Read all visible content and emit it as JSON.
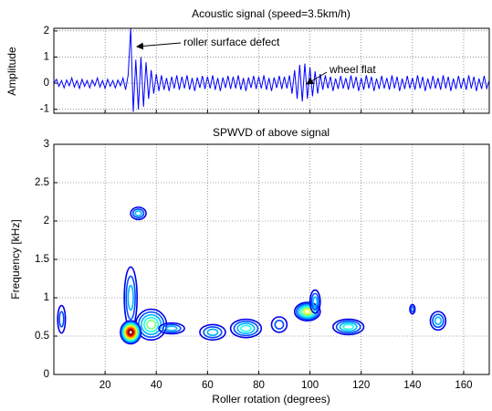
{
  "chart_data": [
    {
      "type": "line",
      "title": "Acoustic signal (speed=3.5km/h)",
      "y_label": "Amplitude",
      "xlim": [
        0,
        170
      ],
      "ylim": [
        -1.15,
        2.1
      ],
      "xticks": [
        20,
        40,
        60,
        80,
        100,
        120,
        140,
        160
      ],
      "yticks": [
        -1,
        0,
        1,
        2
      ],
      "grid": true,
      "annotations": [
        {
          "text": "roller surface defect"
        },
        {
          "text": "wheel flat"
        }
      ],
      "series": [
        {
          "color": "#0000ff",
          "x": [
            0,
            1,
            2,
            3,
            4,
            5,
            6,
            7,
            8,
            9,
            10,
            11,
            12,
            13,
            14,
            15,
            16,
            17,
            18,
            19,
            20,
            21,
            22,
            23,
            24,
            25,
            26,
            27,
            28,
            29,
            30,
            31,
            32,
            33,
            34,
            35,
            36,
            37,
            38,
            39,
            40,
            41,
            42,
            43,
            44,
            45,
            46,
            47,
            48,
            49,
            50,
            51,
            52,
            53,
            54,
            55,
            56,
            57,
            58,
            59,
            60,
            61,
            62,
            63,
            64,
            65,
            66,
            67,
            68,
            69,
            70,
            71,
            72,
            73,
            74,
            75,
            76,
            77,
            78,
            79,
            80,
            81,
            82,
            83,
            84,
            85,
            86,
            87,
            88,
            89,
            90,
            91,
            92,
            93,
            94,
            95,
            96,
            97,
            98,
            99,
            100,
            101,
            102,
            103,
            104,
            105,
            106,
            107,
            108,
            109,
            110,
            111,
            112,
            113,
            114,
            115,
            116,
            117,
            118,
            119,
            120,
            121,
            122,
            123,
            124,
            125,
            126,
            127,
            128,
            129,
            130,
            131,
            132,
            133,
            134,
            135,
            136,
            137,
            138,
            139,
            140,
            141,
            142,
            143,
            144,
            145,
            146,
            147,
            148,
            149,
            150,
            151,
            152,
            153,
            154,
            155,
            156,
            157,
            158,
            159,
            160,
            161,
            162,
            163,
            164,
            165,
            166,
            167,
            168,
            169,
            170
          ],
          "values": [
            0,
            0.15,
            -0.12,
            0.1,
            -0.18,
            0.12,
            -0.1,
            0.2,
            -0.15,
            0.1,
            -0.2,
            0.15,
            -0.12,
            0.1,
            -0.18,
            0.12,
            -0.1,
            0.2,
            -0.15,
            0.1,
            -0.2,
            0.15,
            -0.12,
            0.1,
            -0.18,
            0.12,
            -0.1,
            0.2,
            -0.25,
            0.3,
            2.1,
            -1.1,
            0.9,
            -1.0,
            1.0,
            -0.9,
            0.8,
            -0.6,
            0.5,
            -0.4,
            0.35,
            -0.3,
            0.3,
            -0.25,
            0.2,
            -0.3,
            0.25,
            -0.2,
            0.3,
            -0.25,
            0.25,
            -0.2,
            0.3,
            -0.25,
            0.2,
            -0.3,
            0.22,
            -0.18,
            0.28,
            -0.22,
            0.25,
            -0.2,
            0.3,
            -0.25,
            0.2,
            -0.3,
            0.22,
            -0.18,
            0.28,
            -0.22,
            0.25,
            -0.2,
            0.3,
            -0.25,
            0.2,
            -0.3,
            0.22,
            -0.18,
            0.28,
            -0.22,
            0.25,
            -0.2,
            0.3,
            -0.25,
            0.2,
            -0.3,
            0.22,
            -0.18,
            0.28,
            -0.22,
            0.25,
            -0.2,
            0.3,
            -0.4,
            0.5,
            -0.6,
            0.7,
            -0.7,
            0.75,
            -0.6,
            0.6,
            -0.5,
            0.45,
            -0.4,
            0.35,
            -0.25,
            0.3,
            -0.2,
            0.25,
            -0.3,
            0.18,
            -0.22,
            0.28,
            -0.2,
            0.2,
            -0.25,
            0.3,
            -0.2,
            0.25,
            -0.3,
            0.2,
            -0.25,
            0.3,
            -0.2,
            0.25,
            -0.3,
            0.18,
            -0.22,
            0.28,
            -0.2,
            0.2,
            -0.25,
            0.3,
            -0.2,
            0.25,
            -0.3,
            0.18,
            -0.22,
            0.28,
            -0.2,
            0.2,
            -0.25,
            0.3,
            -0.2,
            0.25,
            -0.3,
            0.18,
            -0.22,
            0.28,
            -0.2,
            0.2,
            -0.25,
            0.3,
            -0.2,
            0.25,
            -0.3,
            0.18,
            -0.22,
            0.28,
            -0.2,
            0.2,
            -0.25,
            0.3,
            -0.2,
            0.25,
            -0.3,
            0.18,
            -0.22,
            0.28,
            -0.2,
            0.1
          ]
        }
      ]
    },
    {
      "type": "contour",
      "title": "SPWVD of above signal",
      "x_label": "Roller rotation (degrees)",
      "y_label": "Frequency [kHz]",
      "xlim": [
        0,
        170
      ],
      "ylim": [
        0,
        3
      ],
      "xticks": [
        20,
        40,
        60,
        80,
        100,
        120,
        140,
        160
      ],
      "yticks": [
        0,
        0.5,
        1,
        1.5,
        2,
        2.5,
        3
      ],
      "grid": true,
      "contours": [
        {
          "x": 3,
          "y": 0.72,
          "rx": 1.5,
          "ry": 0.18,
          "level": 0.2
        },
        {
          "x": 33,
          "y": 2.1,
          "rx": 3,
          "ry": 0.08,
          "level": 0.3
        },
        {
          "x": 30,
          "y": 1.0,
          "rx": 2.5,
          "ry": 0.4,
          "level": 0.25
        },
        {
          "x": 38,
          "y": 0.65,
          "rx": 6,
          "ry": 0.2,
          "level": 0.5
        },
        {
          "x": 30,
          "y": 0.55,
          "rx": 4,
          "ry": 0.15,
          "level": 1.0
        },
        {
          "x": 46,
          "y": 0.6,
          "rx": 5,
          "ry": 0.07,
          "level": 0.3
        },
        {
          "x": 62,
          "y": 0.55,
          "rx": 5,
          "ry": 0.1,
          "level": 0.3
        },
        {
          "x": 75,
          "y": 0.6,
          "rx": 6,
          "ry": 0.12,
          "level": 0.35
        },
        {
          "x": 88,
          "y": 0.65,
          "rx": 3,
          "ry": 0.1,
          "level": 0.2
        },
        {
          "x": 99,
          "y": 0.82,
          "rx": 5,
          "ry": 0.12,
          "level": 0.55
        },
        {
          "x": 102,
          "y": 0.95,
          "rx": 2,
          "ry": 0.15,
          "level": 0.25
        },
        {
          "x": 115,
          "y": 0.62,
          "rx": 6,
          "ry": 0.1,
          "level": 0.35
        },
        {
          "x": 140,
          "y": 0.85,
          "rx": 1,
          "ry": 0.06,
          "level": 0.15
        },
        {
          "x": 150,
          "y": 0.7,
          "rx": 3,
          "ry": 0.12,
          "level": 0.25
        }
      ]
    }
  ]
}
